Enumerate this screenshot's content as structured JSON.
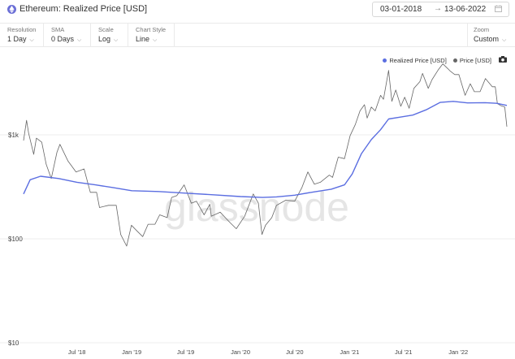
{
  "header": {
    "title": "Ethereum: Realized Price [USD]",
    "date_start": "03-01-2018",
    "date_arrow": "→",
    "date_end": "13-06-2022"
  },
  "controls": {
    "resolution": {
      "label": "Resolution",
      "value": "1 Day"
    },
    "sma": {
      "label": "SMA",
      "value": "0 Days"
    },
    "scale": {
      "label": "Scale",
      "value": "Log"
    },
    "chart_style": {
      "label": "Chart Style",
      "value": "Line"
    },
    "zoom": {
      "label": "Zoom",
      "value": "Custom"
    }
  },
  "chevron": "⌵",
  "watermark": "glassnode",
  "colors": {
    "realized": "#5b6ee1",
    "price": "#666666",
    "grid": "#ececec",
    "eth_icon": "#6b6fd6"
  },
  "chart_data": {
    "type": "line",
    "title": "Ethereum: Realized Price [USD]",
    "y_scale": "log",
    "ylim": [
      10,
      4700
    ],
    "y_ticks": [
      {
        "value": 1000,
        "label": "$1k"
      },
      {
        "value": 100,
        "label": "$100"
      },
      {
        "value": 10,
        "label": "$10"
      }
    ],
    "x_ticks": [
      {
        "value": "2018-07-01",
        "label": "Jul '18"
      },
      {
        "value": "2019-01-01",
        "label": "Jan '19"
      },
      {
        "value": "2019-07-01",
        "label": "Jul '19"
      },
      {
        "value": "2020-01-01",
        "label": "Jan '20"
      },
      {
        "value": "2020-07-01",
        "label": "Jul '20"
      },
      {
        "value": "2021-01-01",
        "label": "Jan '21"
      },
      {
        "value": "2021-07-01",
        "label": "Jul '21"
      },
      {
        "value": "2022-01-01",
        "label": "Jan '22"
      }
    ],
    "xlim": [
      "2018-01-03",
      "2022-06-13"
    ],
    "grid": "horizontal",
    "legend_position": "top-right",
    "series": [
      {
        "name": "Realized Price [USD]",
        "color": "#5b6ee1",
        "points": [
          [
            "2018-01-03",
            270
          ],
          [
            "2018-01-25",
            370
          ],
          [
            "2018-03-01",
            400
          ],
          [
            "2018-05-01",
            380
          ],
          [
            "2018-07-01",
            350
          ],
          [
            "2018-09-01",
            330
          ],
          [
            "2018-11-01",
            310
          ],
          [
            "2019-01-01",
            290
          ],
          [
            "2019-04-01",
            285
          ],
          [
            "2019-07-01",
            275
          ],
          [
            "2019-10-01",
            265
          ],
          [
            "2020-01-01",
            255
          ],
          [
            "2020-03-15",
            250
          ],
          [
            "2020-05-01",
            253
          ],
          [
            "2020-07-01",
            263
          ],
          [
            "2020-09-01",
            282
          ],
          [
            "2020-11-01",
            300
          ],
          [
            "2020-12-15",
            330
          ],
          [
            "2021-01-10",
            420
          ],
          [
            "2021-02-10",
            660
          ],
          [
            "2021-03-15",
            900
          ],
          [
            "2021-04-15",
            1120
          ],
          [
            "2021-05-12",
            1420
          ],
          [
            "2021-06-20",
            1480
          ],
          [
            "2021-08-01",
            1550
          ],
          [
            "2021-09-15",
            1740
          ],
          [
            "2021-11-01",
            2050
          ],
          [
            "2021-12-15",
            2100
          ],
          [
            "2022-02-01",
            2030
          ],
          [
            "2022-04-01",
            2040
          ],
          [
            "2022-05-10",
            2010
          ],
          [
            "2022-06-13",
            1920
          ]
        ]
      },
      {
        "name": "Price [USD]",
        "color": "#666666",
        "points": [
          [
            "2018-01-03",
            880
          ],
          [
            "2018-01-13",
            1380
          ],
          [
            "2018-01-20",
            1040
          ],
          [
            "2018-02-06",
            650
          ],
          [
            "2018-02-15",
            930
          ],
          [
            "2018-03-05",
            850
          ],
          [
            "2018-03-20",
            520
          ],
          [
            "2018-04-06",
            380
          ],
          [
            "2018-04-25",
            680
          ],
          [
            "2018-05-05",
            810
          ],
          [
            "2018-06-01",
            560
          ],
          [
            "2018-06-28",
            440
          ],
          [
            "2018-07-25",
            470
          ],
          [
            "2018-08-15",
            280
          ],
          [
            "2018-09-05",
            280
          ],
          [
            "2018-09-15",
            200
          ],
          [
            "2018-10-15",
            210
          ],
          [
            "2018-11-10",
            210
          ],
          [
            "2018-11-25",
            110
          ],
          [
            "2018-12-15",
            85
          ],
          [
            "2018-12-31",
            135
          ],
          [
            "2019-01-20",
            118
          ],
          [
            "2019-02-07",
            105
          ],
          [
            "2019-02-25",
            138
          ],
          [
            "2019-03-20",
            138
          ],
          [
            "2019-04-05",
            170
          ],
          [
            "2019-04-30",
            160
          ],
          [
            "2019-05-15",
            250
          ],
          [
            "2019-06-01",
            260
          ],
          [
            "2019-06-26",
            330
          ],
          [
            "2019-07-20",
            220
          ],
          [
            "2019-08-06",
            230
          ],
          [
            "2019-09-01",
            170
          ],
          [
            "2019-09-20",
            215
          ],
          [
            "2019-09-25",
            165
          ],
          [
            "2019-10-25",
            180
          ],
          [
            "2019-11-25",
            145
          ],
          [
            "2019-12-18",
            125
          ],
          [
            "2020-01-15",
            165
          ],
          [
            "2020-02-13",
            270
          ],
          [
            "2020-03-01",
            220
          ],
          [
            "2020-03-13",
            110
          ],
          [
            "2020-03-25",
            135
          ],
          [
            "2020-04-15",
            160
          ],
          [
            "2020-05-01",
            210
          ],
          [
            "2020-06-01",
            235
          ],
          [
            "2020-07-01",
            230
          ],
          [
            "2020-07-25",
            310
          ],
          [
            "2020-08-14",
            440
          ],
          [
            "2020-09-05",
            335
          ],
          [
            "2020-09-25",
            350
          ],
          [
            "2020-10-25",
            410
          ],
          [
            "2020-11-05",
            390
          ],
          [
            "2020-11-24",
            610
          ],
          [
            "2020-12-15",
            590
          ],
          [
            "2021-01-03",
            980
          ],
          [
            "2021-01-20",
            1250
          ],
          [
            "2021-02-05",
            1700
          ],
          [
            "2021-02-20",
            1950
          ],
          [
            "2021-03-01",
            1450
          ],
          [
            "2021-03-15",
            1850
          ],
          [
            "2021-03-28",
            1700
          ],
          [
            "2021-04-15",
            2400
          ],
          [
            "2021-04-25",
            2200
          ],
          [
            "2021-05-12",
            4170
          ],
          [
            "2021-05-23",
            2100
          ],
          [
            "2021-06-05",
            2700
          ],
          [
            "2021-06-22",
            1880
          ],
          [
            "2021-07-05",
            2300
          ],
          [
            "2021-07-20",
            1800
          ],
          [
            "2021-08-05",
            2800
          ],
          [
            "2021-08-25",
            3250
          ],
          [
            "2021-09-03",
            3900
          ],
          [
            "2021-09-22",
            2800
          ],
          [
            "2021-10-05",
            3400
          ],
          [
            "2021-10-25",
            4200
          ],
          [
            "2021-11-10",
            4820
          ],
          [
            "2021-11-28",
            4300
          ],
          [
            "2021-12-05",
            4100
          ],
          [
            "2021-12-20",
            3800
          ],
          [
            "2022-01-03",
            3800
          ],
          [
            "2022-01-24",
            2400
          ],
          [
            "2022-02-10",
            3100
          ],
          [
            "2022-02-24",
            2600
          ],
          [
            "2022-03-15",
            2600
          ],
          [
            "2022-04-02",
            3480
          ],
          [
            "2022-04-25",
            2900
          ],
          [
            "2022-05-05",
            2900
          ],
          [
            "2022-05-12",
            2000
          ],
          [
            "2022-05-25",
            1900
          ],
          [
            "2022-06-06",
            1850
          ],
          [
            "2022-06-13",
            1200
          ]
        ]
      }
    ]
  }
}
